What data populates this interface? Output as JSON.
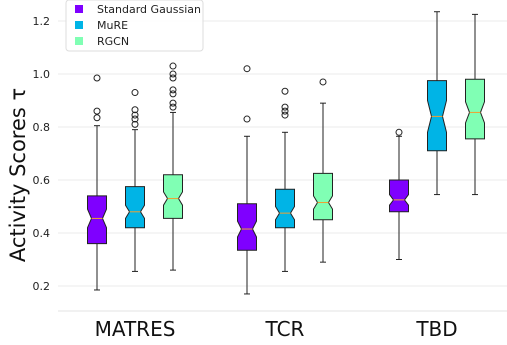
{
  "chart_data": {
    "type": "boxplot",
    "title": "",
    "xlabel": "",
    "ylabel": "Activity Scores τ",
    "ylim": [
      0.1,
      1.27
    ],
    "yticks": [
      0.2,
      0.4,
      0.6,
      0.8,
      1.0,
      1.2
    ],
    "grid": "horizontal",
    "legend_position": "top-left",
    "notched": true,
    "categories": [
      "MATRES",
      "TCR",
      "TBD"
    ],
    "series": [
      {
        "name": "Standard Gaussian",
        "color": "#7f00ff",
        "boxes": [
          {
            "whislo": 0.185,
            "q1": 0.36,
            "med": 0.455,
            "q3": 0.54,
            "whishi": 0.805,
            "notchlo": 0.42,
            "notchhi": 0.49,
            "fliers": [
              0.835,
              0.86,
              0.985
            ]
          },
          {
            "whislo": 0.17,
            "q1": 0.335,
            "med": 0.415,
            "q3": 0.51,
            "whishi": 0.765,
            "notchlo": 0.385,
            "notchhi": 0.445,
            "fliers": [
              0.83,
              1.02
            ]
          },
          {
            "whislo": 0.3,
            "q1": 0.48,
            "med": 0.525,
            "q3": 0.6,
            "whishi": 0.765,
            "notchlo": 0.505,
            "notchhi": 0.545,
            "fliers": [
              0.78
            ]
          }
        ]
      },
      {
        "name": "MuRE",
        "color": "#00b4e6",
        "boxes": [
          {
            "whislo": 0.255,
            "q1": 0.42,
            "med": 0.48,
            "q3": 0.575,
            "whishi": 0.79,
            "notchlo": 0.455,
            "notchhi": 0.505,
            "fliers": [
              0.81,
              0.83,
              0.845,
              0.865,
              0.93
            ]
          },
          {
            "whislo": 0.255,
            "q1": 0.42,
            "med": 0.475,
            "q3": 0.565,
            "whishi": 0.78,
            "notchlo": 0.45,
            "notchhi": 0.5,
            "fliers": [
              0.845,
              0.86,
              0.875,
              0.935
            ]
          },
          {
            "whislo": 0.545,
            "q1": 0.71,
            "med": 0.84,
            "q3": 0.975,
            "whishi": 1.235,
            "notchlo": 0.78,
            "notchhi": 0.9,
            "fliers": []
          }
        ]
      },
      {
        "name": "RGCN",
        "color": "#80ffb4",
        "boxes": [
          {
            "whislo": 0.26,
            "q1": 0.455,
            "med": 0.53,
            "q3": 0.62,
            "whishi": 0.855,
            "notchlo": 0.505,
            "notchhi": 0.555,
            "fliers": [
              0.875,
              0.89,
              0.925,
              0.94,
              0.985,
              1.0,
              1.03
            ]
          },
          {
            "whislo": 0.29,
            "q1": 0.45,
            "med": 0.515,
            "q3": 0.625,
            "whishi": 0.89,
            "notchlo": 0.49,
            "notchhi": 0.54,
            "fliers": [
              0.97
            ]
          },
          {
            "whislo": 0.545,
            "q1": 0.755,
            "med": 0.855,
            "q3": 0.98,
            "whishi": 1.225,
            "notchlo": 0.815,
            "notchhi": 0.895,
            "fliers": []
          }
        ]
      }
    ]
  }
}
